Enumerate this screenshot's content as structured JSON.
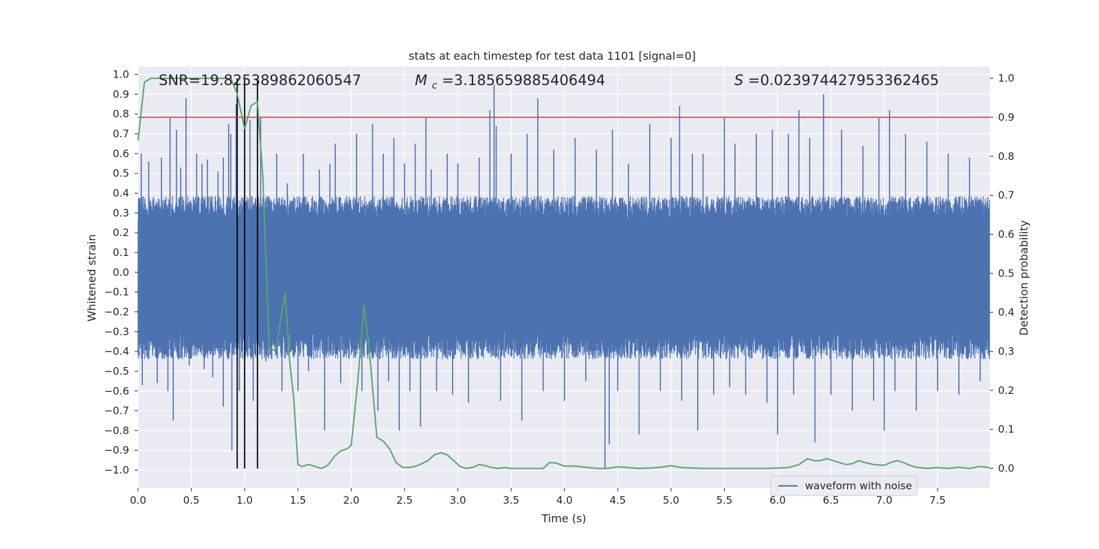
{
  "chart_data": {
    "type": "line",
    "title": "stats at each timestep for test data 1101 [signal=0]",
    "xlabel": "Time (s)",
    "ylabel_left": "Whitened strain",
    "ylabel_right": "Detection probability",
    "xlim": [
      0.0,
      7.99
    ],
    "ylim_left": [
      -1.09,
      1.04
    ],
    "ylim_right": [
      -0.05,
      1.03
    ],
    "x_ticks": [
      "0.0",
      "0.5",
      "1.0",
      "1.5",
      "2.0",
      "2.5",
      "3.0",
      "3.5",
      "4.0",
      "4.5",
      "5.0",
      "5.5",
      "6.0",
      "6.5",
      "7.0",
      "7.5"
    ],
    "x_tick_values": [
      0.0,
      0.5,
      1.0,
      1.5,
      2.0,
      2.5,
      3.0,
      3.5,
      4.0,
      4.5,
      5.0,
      5.5,
      6.0,
      6.5,
      7.0,
      7.5
    ],
    "y_left_ticks": [
      "1.0",
      "0.9",
      "0.8",
      "0.7",
      "0.6",
      "0.5",
      "0.4",
      "0.3",
      "0.2",
      "0.1",
      "0.0",
      "−0.1",
      "−0.2",
      "−0.3",
      "−0.4",
      "−0.5",
      "−0.6",
      "−0.7",
      "−0.8",
      "−0.9",
      "−1.0"
    ],
    "y_left_tick_values": [
      1.0,
      0.9,
      0.8,
      0.7,
      0.6,
      0.5,
      0.4,
      0.3,
      0.2,
      0.1,
      0.0,
      -0.1,
      -0.2,
      -0.3,
      -0.4,
      -0.5,
      -0.6,
      -0.7,
      -0.8,
      -0.9,
      -1.0
    ],
    "y_right_ticks": [
      "1.0",
      "0.9",
      "0.8",
      "0.7",
      "0.6",
      "0.5",
      "0.4",
      "0.3",
      "0.2",
      "0.1",
      "0.0"
    ],
    "y_right_tick_values": [
      1.0,
      0.9,
      0.8,
      0.7,
      0.6,
      0.5,
      0.4,
      0.3,
      0.2,
      0.1,
      0.0
    ],
    "annotations": {
      "snr": "SNR=19.825389862060547",
      "mc_symbol": "M",
      "mc_sub": "c",
      "mc_value": "=3.185659885406494",
      "s_symbol": "S",
      "s_value": "=0.023974427953362465"
    },
    "threshold": {
      "value": 0.9,
      "axis": "right",
      "color": "#c44e52"
    },
    "vertical_markers": [
      0.93,
      1.0,
      1.12
    ],
    "waveform": {
      "name": "waveform with noise",
      "color": "#4c72b0",
      "samples_per_second": 400,
      "envelope_pos": 0.35,
      "envelope_neg": -0.4,
      "spikes": [
        [
          0.03,
          0.6
        ],
        [
          0.04,
          -0.57
        ],
        [
          0.1,
          0.56
        ],
        [
          0.18,
          -0.56
        ],
        [
          0.22,
          0.58
        ],
        [
          0.28,
          -0.6
        ],
        [
          0.3,
          0.78
        ],
        [
          0.33,
          -0.75
        ],
        [
          0.36,
          0.72
        ],
        [
          0.4,
          0.53
        ],
        [
          0.45,
          0.88
        ],
        [
          0.48,
          -0.47
        ],
        [
          0.55,
          0.6
        ],
        [
          0.6,
          0.55
        ],
        [
          0.62,
          -0.49
        ],
        [
          0.65,
          0.57
        ],
        [
          0.7,
          -0.53
        ],
        [
          0.75,
          0.51
        ],
        [
          0.8,
          0.58
        ],
        [
          0.8,
          -0.68
        ],
        [
          0.85,
          0.75
        ],
        [
          0.87,
          0.7
        ],
        [
          0.88,
          -0.9
        ],
        [
          0.92,
          0.85
        ],
        [
          0.95,
          -0.6
        ],
        [
          1.05,
          0.77
        ],
        [
          1.08,
          -0.65
        ],
        [
          1.15,
          0.78
        ],
        [
          1.2,
          -0.45
        ],
        [
          1.3,
          0.6
        ],
        [
          1.35,
          -0.6
        ],
        [
          1.4,
          0.45
        ],
        [
          1.5,
          -0.6
        ],
        [
          1.55,
          0.6
        ],
        [
          1.6,
          -0.5
        ],
        [
          1.7,
          0.52
        ],
        [
          1.75,
          -0.8
        ],
        [
          1.8,
          0.55
        ],
        [
          1.85,
          0.65
        ],
        [
          1.9,
          -0.56
        ],
        [
          2.05,
          0.7
        ],
        [
          2.1,
          -0.6
        ],
        [
          2.2,
          0.75
        ],
        [
          2.25,
          -0.7
        ],
        [
          2.3,
          0.6
        ],
        [
          2.35,
          -0.55
        ],
        [
          2.4,
          0.68
        ],
        [
          2.45,
          -0.8
        ],
        [
          2.5,
          0.55
        ],
        [
          2.55,
          -0.6
        ],
        [
          2.6,
          0.65
        ],
        [
          2.65,
          -0.78
        ],
        [
          2.7,
          0.78
        ],
        [
          2.75,
          0.52
        ],
        [
          2.8,
          -0.6
        ],
        [
          2.9,
          0.6
        ],
        [
          2.95,
          -0.62
        ],
        [
          3.0,
          0.55
        ],
        [
          3.1,
          -0.66
        ],
        [
          3.2,
          0.58
        ],
        [
          3.3,
          0.82
        ],
        [
          3.34,
          0.95
        ],
        [
          3.36,
          0.74
        ],
        [
          3.4,
          -0.65
        ],
        [
          3.5,
          0.6
        ],
        [
          3.6,
          -0.75
        ],
        [
          3.65,
          0.7
        ],
        [
          3.75,
          0.88
        ],
        [
          3.8,
          -0.6
        ],
        [
          3.9,
          0.62
        ],
        [
          4.0,
          -0.65
        ],
        [
          4.1,
          0.68
        ],
        [
          4.2,
          -0.55
        ],
        [
          4.3,
          0.62
        ],
        [
          4.38,
          -0.99
        ],
        [
          4.42,
          -0.87
        ],
        [
          4.45,
          0.72
        ],
        [
          4.5,
          -0.6
        ],
        [
          4.6,
          0.55
        ],
        [
          4.7,
          -0.82
        ],
        [
          4.8,
          0.75
        ],
        [
          4.9,
          -0.6
        ],
        [
          5.0,
          0.68
        ],
        [
          5.08,
          0.84
        ],
        [
          5.1,
          -0.65
        ],
        [
          5.2,
          0.6
        ],
        [
          5.25,
          -0.8
        ],
        [
          5.3,
          0.6
        ],
        [
          5.4,
          -0.62
        ],
        [
          5.5,
          0.78
        ],
        [
          5.55,
          -0.58
        ],
        [
          5.6,
          0.65
        ],
        [
          5.7,
          -0.62
        ],
        [
          5.8,
          0.7
        ],
        [
          5.9,
          -0.66
        ],
        [
          5.95,
          0.72
        ],
        [
          6.0,
          -0.82
        ],
        [
          6.1,
          0.7
        ],
        [
          6.15,
          -0.62
        ],
        [
          6.2,
          0.82
        ],
        [
          6.3,
          0.68
        ],
        [
          6.35,
          -0.86
        ],
        [
          6.43,
          0.9
        ],
        [
          6.5,
          -0.62
        ],
        [
          6.6,
          0.72
        ],
        [
          6.7,
          -0.7
        ],
        [
          6.8,
          0.64
        ],
        [
          6.9,
          -0.65
        ],
        [
          6.95,
          0.78
        ],
        [
          7.0,
          -0.8
        ],
        [
          7.05,
          0.82
        ],
        [
          7.1,
          -0.6
        ],
        [
          7.2,
          0.7
        ],
        [
          7.3,
          -0.7
        ],
        [
          7.4,
          0.66
        ],
        [
          7.5,
          -0.6
        ],
        [
          7.6,
          0.6
        ],
        [
          7.7,
          -0.62
        ],
        [
          7.8,
          0.58
        ],
        [
          7.9,
          -0.55
        ]
      ]
    },
    "probability": {
      "color": "#55a868",
      "x": [
        0.0,
        0.06,
        0.12,
        0.18,
        0.5,
        0.87,
        0.93,
        1.0,
        1.06,
        1.12,
        1.17,
        1.23,
        1.29,
        1.32,
        1.38,
        1.42,
        1.46,
        1.5,
        1.54,
        1.6,
        1.66,
        1.72,
        1.78,
        1.84,
        1.9,
        1.96,
        2.0,
        2.06,
        2.12,
        2.18,
        2.24,
        2.3,
        2.36,
        2.42,
        2.48,
        2.54,
        2.6,
        2.66,
        2.72,
        2.78,
        2.84,
        2.9,
        2.96,
        3.02,
        3.08,
        3.14,
        3.2,
        3.26,
        3.32,
        3.38,
        3.44,
        3.5,
        3.6,
        3.7,
        3.8,
        3.86,
        3.92,
        4.0,
        4.1,
        4.2,
        4.3,
        4.4,
        4.5,
        4.6,
        4.7,
        4.8,
        4.9,
        5.0,
        5.1,
        5.3,
        5.5,
        5.7,
        5.9,
        6.1,
        6.2,
        6.28,
        6.34,
        6.4,
        6.46,
        6.52,
        6.58,
        6.64,
        6.7,
        6.76,
        6.82,
        6.9,
        7.0,
        7.06,
        7.12,
        7.18,
        7.24,
        7.3,
        7.4,
        7.5,
        7.6,
        7.7,
        7.8,
        7.9,
        7.99
      ],
      "y": [
        0.84,
        0.99,
        1.0,
        1.0,
        1.0,
        1.0,
        0.96,
        0.87,
        0.93,
        0.94,
        0.75,
        0.31,
        0.3,
        0.35,
        0.45,
        0.28,
        0.18,
        0.01,
        0.005,
        0.01,
        0.005,
        0.0,
        0.008,
        0.03,
        0.045,
        0.05,
        0.06,
        0.22,
        0.42,
        0.27,
        0.08,
        0.07,
        0.05,
        0.015,
        0.003,
        0.002,
        0.005,
        0.012,
        0.02,
        0.035,
        0.04,
        0.035,
        0.02,
        0.005,
        0.0,
        0.003,
        0.01,
        0.007,
        0.002,
        0.0,
        0.002,
        0.0,
        0.0,
        0.0,
        0.0,
        0.015,
        0.014,
        0.006,
        0.006,
        0.003,
        0.0,
        0.0,
        0.004,
        0.002,
        0.0,
        0.001,
        0.003,
        0.007,
        0.002,
        0.0,
        0.0,
        0.0,
        0.0,
        0.002,
        0.01,
        0.025,
        0.02,
        0.02,
        0.025,
        0.02,
        0.015,
        0.01,
        0.012,
        0.02,
        0.015,
        0.01,
        0.008,
        0.015,
        0.02,
        0.015,
        0.008,
        0.003,
        0.0,
        0.002,
        0.0,
        0.003,
        0.0,
        0.005,
        0.002
      ]
    },
    "legend": {
      "entries": [
        "waveform with noise"
      ],
      "location": "lower center-right"
    },
    "grid": true
  }
}
